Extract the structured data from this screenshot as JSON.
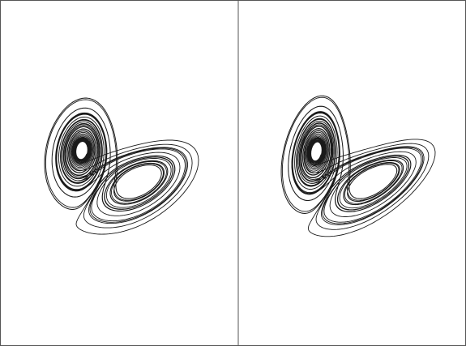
{
  "figure": {
    "kind": "stereo-pair",
    "panels": [
      {
        "id": "left",
        "view": "left-eye"
      },
      {
        "id": "right",
        "view": "right-eye"
      }
    ],
    "colors": {
      "background": "#ffffff",
      "stroke": "#1a1a1a",
      "frame": "#555555"
    },
    "attractor": {
      "system": "lorenz",
      "sigma": 10,
      "rho": 28,
      "beta": 2.6667,
      "steps": 7000,
      "dt": 0.006,
      "stereo_rotation_deg": 5
    }
  }
}
